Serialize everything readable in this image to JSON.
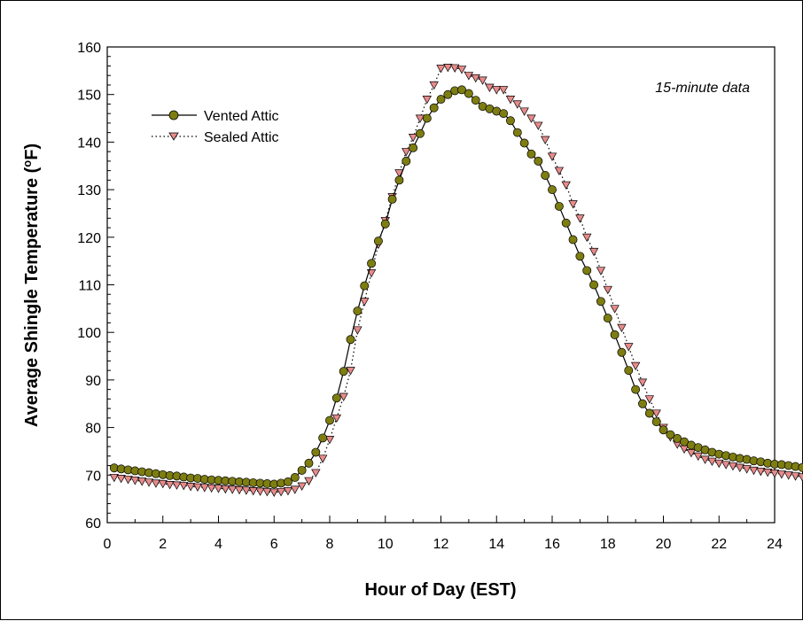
{
  "chart_data": {
    "type": "line",
    "title": "",
    "annotation": "15-minute data",
    "xlabel": "Hour of Day (EST)",
    "ylabel_prefix": "Average Shingle Temperature (",
    "ylabel_degree": "o",
    "ylabel_suffix": "F)",
    "xlim": [
      0,
      24
    ],
    "ylim": [
      60,
      160
    ],
    "xticks": [
      "0",
      "2",
      "4",
      "6",
      "8",
      "10",
      "12",
      "14",
      "16",
      "18",
      "20",
      "22",
      "24"
    ],
    "yticks": [
      "60",
      "70",
      "80",
      "90",
      "100",
      "110",
      "120",
      "130",
      "140",
      "150",
      "160"
    ],
    "grid": false,
    "legend_position": "top-left",
    "x_spacing_hours": 0.25,
    "x_start": 0.25,
    "series": [
      {
        "name": "Vented Attic",
        "line_style": "solid",
        "marker": "circle",
        "marker_color": "#7d7d12",
        "values": [
          71.5,
          71.3,
          71.1,
          70.9,
          70.7,
          70.5,
          70.3,
          70.1,
          69.9,
          69.8,
          69.6,
          69.4,
          69.3,
          69.1,
          69.0,
          68.9,
          68.8,
          68.7,
          68.6,
          68.5,
          68.4,
          68.3,
          68.2,
          68.1,
          68.3,
          68.6,
          69.5,
          71.0,
          72.5,
          74.8,
          77.8,
          81.5,
          86.2,
          91.8,
          98.5,
          104.5,
          109.8,
          114.5,
          119.2,
          122.8,
          128.0,
          132.0,
          136.0,
          138.8,
          141.8,
          145.0,
          147.2,
          149.0,
          150.0,
          150.8,
          151.0,
          150.2,
          148.8,
          147.5,
          147.0,
          146.5,
          146.0,
          144.5,
          142.0,
          139.8,
          137.5,
          136.0,
          133.0,
          130.0,
          126.5,
          123.0,
          119.5,
          116.0,
          113.0,
          110.0,
          106.5,
          103.0,
          99.5,
          95.8,
          92.0,
          88.0,
          85.0,
          83.0,
          81.2,
          79.5,
          78.5,
          77.7,
          77.0,
          76.3,
          75.8,
          75.3,
          74.8,
          74.4,
          74.1,
          73.8,
          73.5,
          73.3,
          73.0,
          72.8,
          72.5,
          72.3,
          72.2,
          72.0,
          71.8,
          71.6
        ]
      },
      {
        "name": "Sealed Attic",
        "line_style": "dotted",
        "marker": "triangle-down",
        "marker_color": "#e88b8b",
        "values": [
          69.5,
          69.3,
          69.1,
          68.9,
          68.7,
          68.5,
          68.3,
          68.2,
          68.0,
          67.9,
          67.8,
          67.6,
          67.5,
          67.4,
          67.3,
          67.2,
          67.1,
          67.0,
          66.9,
          66.8,
          66.7,
          66.6,
          66.5,
          66.4,
          66.5,
          66.7,
          67.0,
          67.7,
          68.8,
          70.5,
          73.5,
          77.5,
          82.0,
          86.5,
          92.0,
          100.5,
          106.5,
          112.5,
          118.5,
          123.5,
          128.5,
          133.5,
          138.0,
          141.0,
          145.0,
          149.0,
          152.0,
          155.5,
          155.7,
          155.6,
          155.3,
          154.0,
          153.5,
          153.0,
          151.5,
          151.0,
          151.0,
          149.0,
          148.0,
          146.5,
          145.0,
          143.5,
          140.5,
          137.0,
          134.0,
          131.0,
          127.0,
          124.0,
          120.0,
          117.0,
          113.0,
          109.0,
          105.0,
          101.0,
          97.0,
          93.0,
          89.5,
          86.0,
          83.0,
          80.0,
          78.0,
          76.5,
          75.5,
          74.7,
          74.0,
          73.3,
          72.9,
          72.5,
          72.2,
          71.9,
          71.6,
          71.3,
          71.0,
          70.8,
          70.6,
          70.4,
          70.2,
          70.0,
          69.8,
          69.6
        ]
      }
    ]
  }
}
